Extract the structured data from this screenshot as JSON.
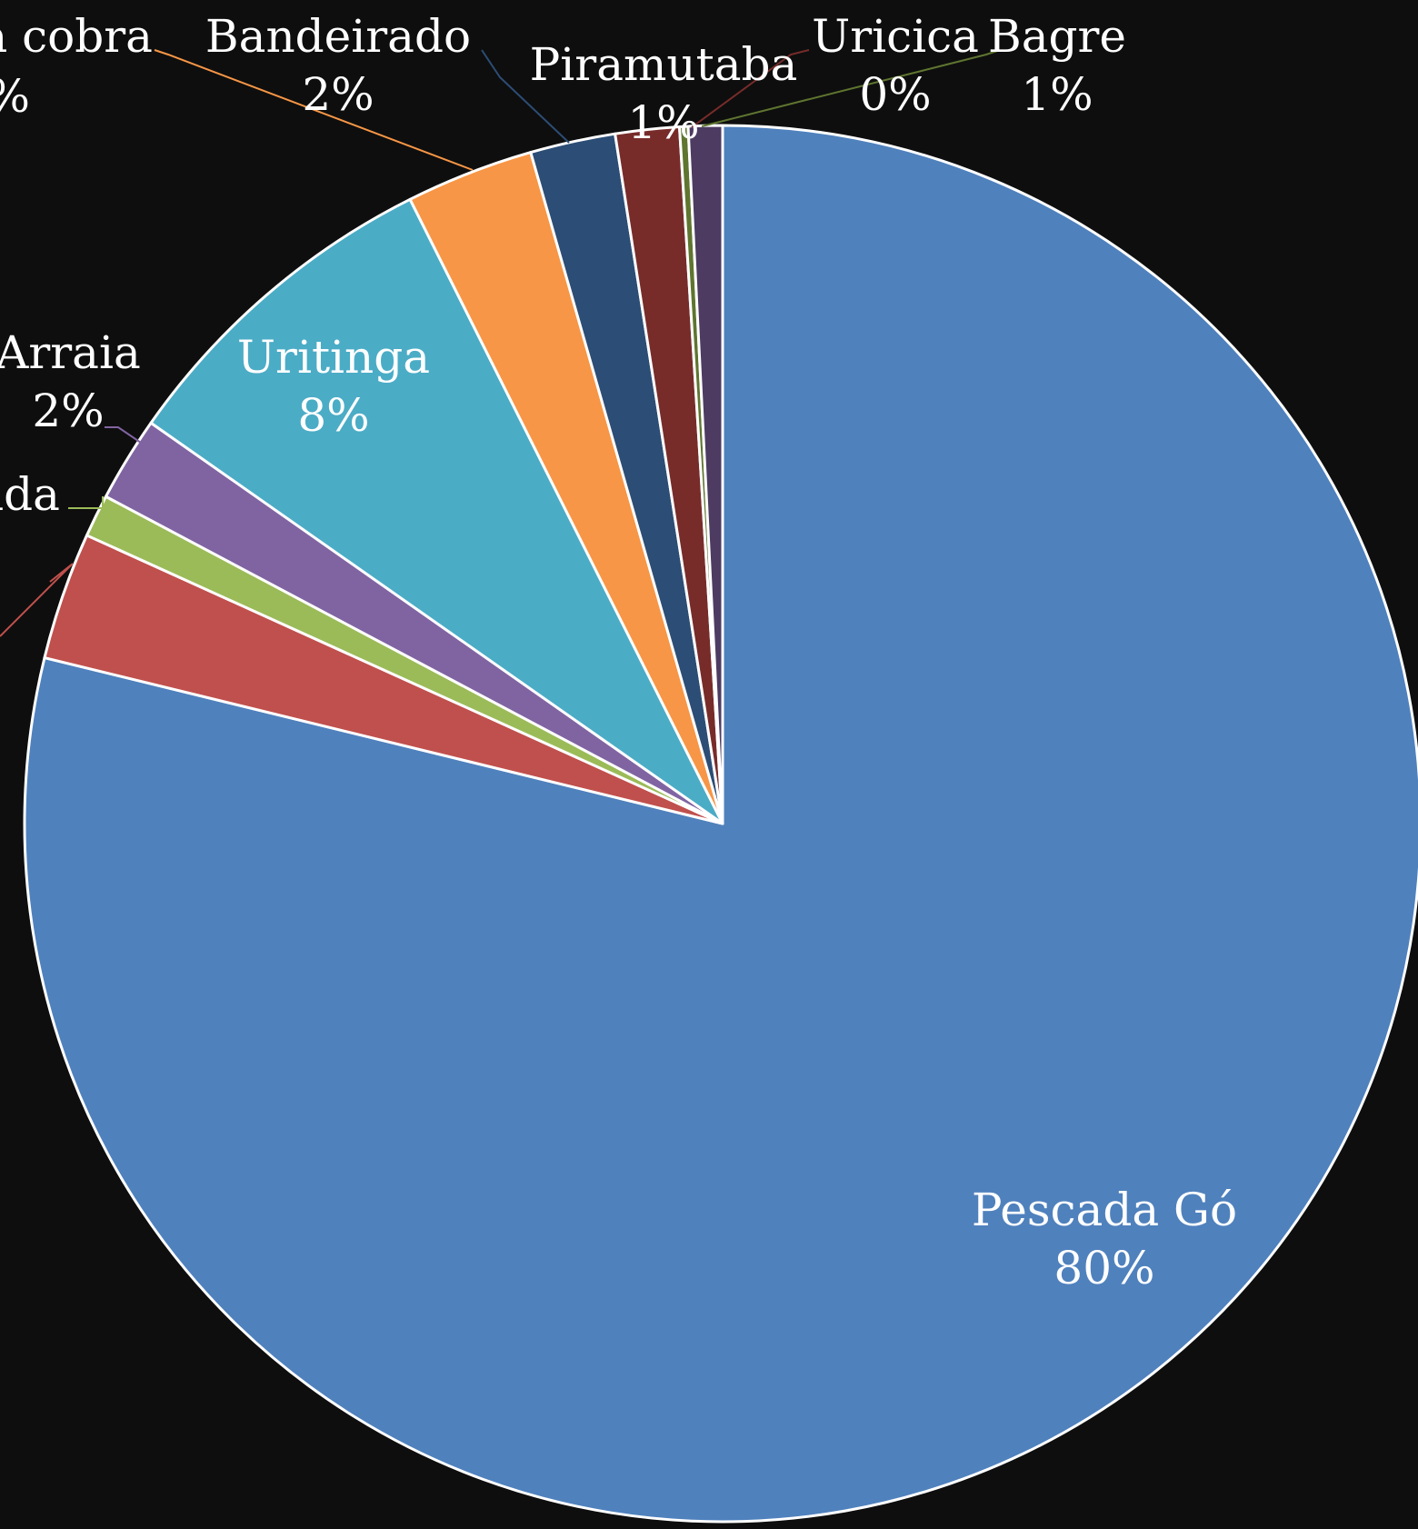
{
  "chart_data": {
    "type": "pie",
    "background": "#0e0e0e",
    "start_angle_deg": 0,
    "direction": "clockwise",
    "slices": [
      {
        "name": "Pescada Gó",
        "value": 80,
        "label_pct": "80%",
        "color": "#4f81bd",
        "label_mode": "inside",
        "has_leader": false
      },
      {
        "name": "",
        "value": 3,
        "label_pct": "",
        "color": "#c0504d",
        "label_mode": "cropped",
        "has_leader": true
      },
      {
        "name": "",
        "value": 1,
        "label_pct": "",
        "color": "#9bbb59",
        "label_mode": "cropped",
        "has_leader": true
      },
      {
        "name": "Arraia",
        "value": 2,
        "label_pct": "2%",
        "color": "#8064a2",
        "label_mode": "outside",
        "has_leader": true
      },
      {
        "name": "Uritinga",
        "value": 8,
        "label_pct": "8%",
        "color": "#4bacc6",
        "label_mode": "inside",
        "has_leader": false
      },
      {
        "name": "",
        "value": 3,
        "label_pct": "",
        "color": "#f79646",
        "label_mode": "outside",
        "has_leader": true
      },
      {
        "name": "Bandeirado",
        "value": 2,
        "label_pct": "2%",
        "color": "#2c4d75",
        "label_mode": "outside",
        "has_leader": true
      },
      {
        "name": "Piramutaba",
        "value": 1.5,
        "label_pct": "1%",
        "color": "#772c2a",
        "label_mode": "outside",
        "has_leader": true
      },
      {
        "name": "Uricica",
        "value": 0.2,
        "label_pct": "0%",
        "color": "#5f7530",
        "label_mode": "outside",
        "has_leader": true
      },
      {
        "name": "Bagre",
        "value": 0.8,
        "label_pct": "1%",
        "color": "#4d3b62",
        "label_mode": "outside",
        "has_leader": true
      }
    ],
    "cropped_labels": [
      {
        "text": "a cobra"
      },
      {
        "text": "%"
      },
      {
        "text": "nda"
      }
    ]
  }
}
